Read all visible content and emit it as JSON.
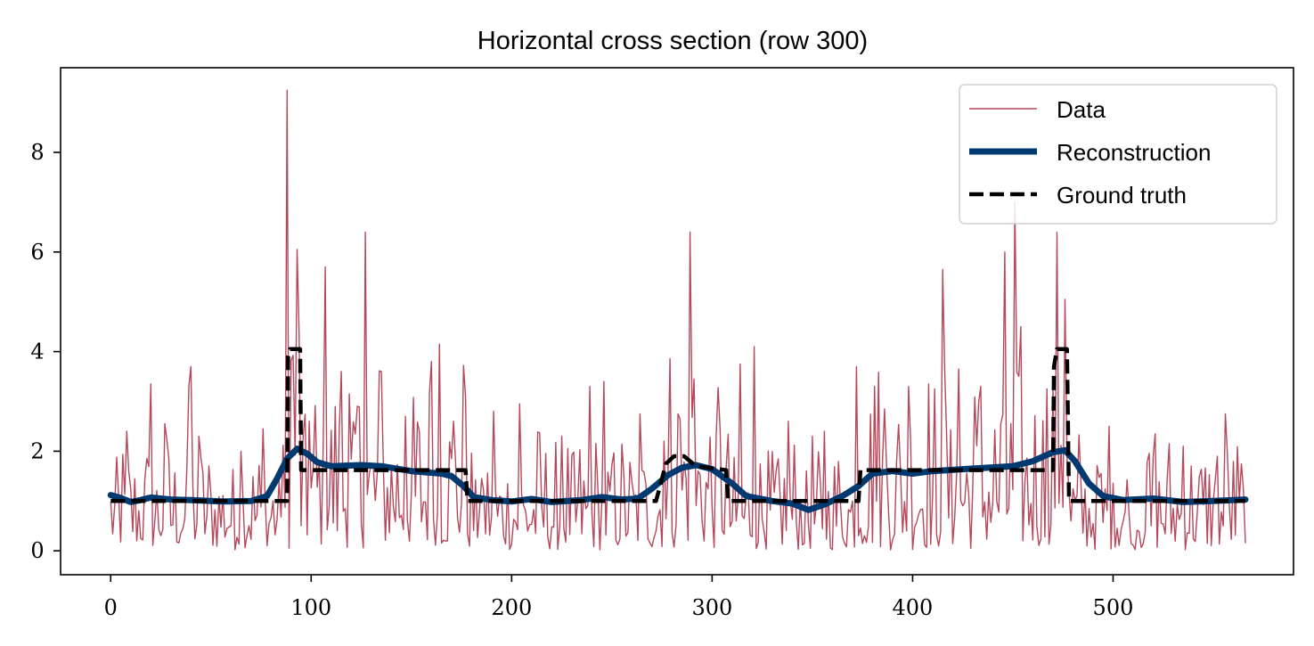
{
  "chart_data": {
    "type": "line",
    "title": "Horizontal cross section (row 300)",
    "xlabel": "",
    "ylabel": "",
    "xlim": [
      -25,
      590
    ],
    "ylim": [
      -0.48,
      9.7
    ],
    "x_ticks": [
      0,
      100,
      200,
      300,
      400,
      500
    ],
    "y_ticks": [
      0,
      2,
      4,
      6,
      8
    ],
    "grid": false,
    "legend_position": "top-right",
    "series": [
      {
        "name": "Data",
        "style": "thin-solid",
        "color": "#b5495b",
        "noise_peaks": [
          [
            8,
            2.4
          ],
          [
            20,
            3.35
          ],
          [
            27,
            2.55
          ],
          [
            39,
            3.3
          ],
          [
            40,
            3.7
          ],
          [
            44,
            2.3
          ],
          [
            65,
            2.0
          ],
          [
            76,
            2.45
          ],
          [
            88,
            9.25
          ],
          [
            99,
            2.6
          ],
          [
            107,
            5.7
          ],
          [
            115,
            3.6
          ],
          [
            119,
            3.15
          ],
          [
            127,
            6.4
          ],
          [
            135,
            3.6
          ],
          [
            147,
            2.7
          ],
          [
            160,
            3.8
          ],
          [
            164,
            4.15
          ],
          [
            171,
            2.6
          ],
          [
            177,
            3.1
          ],
          [
            191,
            2.8
          ],
          [
            204,
            2.95
          ],
          [
            225,
            2.3
          ],
          [
            239,
            3.3
          ],
          [
            246,
            3.4
          ],
          [
            264,
            2.75
          ],
          [
            276,
            2.2
          ],
          [
            283,
            2.75
          ],
          [
            289,
            6.4
          ],
          [
            291,
            3.45
          ],
          [
            302,
            2.3
          ],
          [
            314,
            3.75
          ],
          [
            321,
            4.1
          ],
          [
            338,
            2.6
          ],
          [
            356,
            2.4
          ],
          [
            372,
            3.7
          ],
          [
            381,
            3.3
          ],
          [
            386,
            2.85
          ],
          [
            398,
            3.3
          ],
          [
            415,
            5.65
          ],
          [
            423,
            3.65
          ],
          [
            434,
            3.3
          ],
          [
            446,
            6.0
          ],
          [
            451,
            7.0
          ],
          [
            454,
            4.5
          ],
          [
            467,
            3.25
          ],
          [
            476,
            5.05
          ],
          [
            498,
            2.5
          ],
          [
            521,
            2.35
          ],
          [
            535,
            2.1
          ],
          [
            552,
            1.9
          ],
          [
            556,
            2.75
          ]
        ]
      },
      {
        "name": "Reconstruction",
        "style": "thick-solid",
        "color": "#003a70",
        "points": [
          [
            0,
            1.12
          ],
          [
            5,
            1.06
          ],
          [
            10,
            0.98
          ],
          [
            15,
            1.02
          ],
          [
            20,
            1.07
          ],
          [
            30,
            1.03
          ],
          [
            40,
            1.02
          ],
          [
            55,
            0.99
          ],
          [
            70,
            1.0
          ],
          [
            78,
            1.1
          ],
          [
            83,
            1.45
          ],
          [
            88,
            1.85
          ],
          [
            93,
            2.05
          ],
          [
            98,
            1.95
          ],
          [
            103,
            1.78
          ],
          [
            110,
            1.7
          ],
          [
            125,
            1.72
          ],
          [
            135,
            1.7
          ],
          [
            150,
            1.6
          ],
          [
            165,
            1.55
          ],
          [
            170,
            1.5
          ],
          [
            176,
            1.3
          ],
          [
            181,
            1.08
          ],
          [
            190,
            1.02
          ],
          [
            200,
            0.99
          ],
          [
            210,
            1.04
          ],
          [
            220,
            0.98
          ],
          [
            235,
            1.02
          ],
          [
            245,
            1.08
          ],
          [
            255,
            1.03
          ],
          [
            263,
            1.05
          ],
          [
            270,
            1.25
          ],
          [
            278,
            1.52
          ],
          [
            285,
            1.67
          ],
          [
            292,
            1.72
          ],
          [
            300,
            1.64
          ],
          [
            310,
            1.35
          ],
          [
            317,
            1.1
          ],
          [
            330,
            1.0
          ],
          [
            340,
            0.95
          ],
          [
            348,
            0.82
          ],
          [
            356,
            0.93
          ],
          [
            365,
            1.1
          ],
          [
            373,
            1.3
          ],
          [
            380,
            1.55
          ],
          [
            390,
            1.6
          ],
          [
            400,
            1.55
          ],
          [
            410,
            1.6
          ],
          [
            430,
            1.65
          ],
          [
            450,
            1.7
          ],
          [
            460,
            1.8
          ],
          [
            470,
            1.98
          ],
          [
            476,
            2.02
          ],
          [
            481,
            1.8
          ],
          [
            488,
            1.35
          ],
          [
            495,
            1.1
          ],
          [
            505,
            1.02
          ],
          [
            520,
            1.05
          ],
          [
            535,
            0.98
          ],
          [
            550,
            1.0
          ],
          [
            566,
            1.03
          ]
        ]
      },
      {
        "name": "Ground truth",
        "style": "dashed",
        "color": "#000000",
        "points": [
          [
            0,
            1.0
          ],
          [
            88,
            1.0
          ],
          [
            88.5,
            3.9
          ],
          [
            89.5,
            4.05
          ],
          [
            94.5,
            4.05
          ],
          [
            95,
            1.62
          ],
          [
            177,
            1.62
          ],
          [
            178,
            1.0
          ],
          [
            272,
            1.0
          ],
          [
            277,
            1.75
          ],
          [
            281,
            1.9
          ],
          [
            286,
            1.9
          ],
          [
            292,
            1.7
          ],
          [
            307,
            1.62
          ],
          [
            308,
            1.0
          ],
          [
            373,
            1.0
          ],
          [
            374,
            1.62
          ],
          [
            470,
            1.62
          ],
          [
            470.5,
            3.7
          ],
          [
            472,
            4.05
          ],
          [
            477,
            4.05
          ],
          [
            478,
            1.0
          ],
          [
            566,
            1.0
          ]
        ]
      }
    ]
  }
}
